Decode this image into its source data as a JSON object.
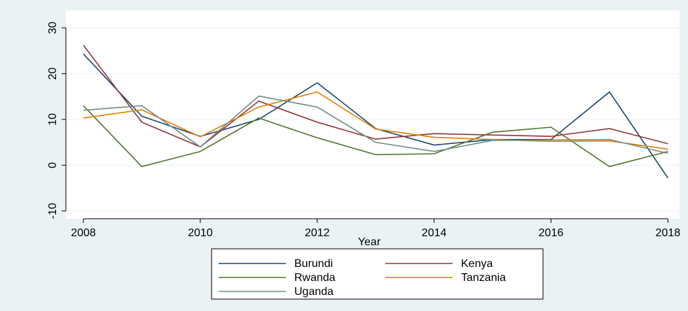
{
  "chart_data": {
    "type": "line",
    "x_label": "Year",
    "x": [
      2008,
      2009,
      2010,
      2011,
      2012,
      2013,
      2014,
      2015,
      2016,
      2017,
      2018
    ],
    "series": [
      {
        "name": "Burundi",
        "color": "#1a476f",
        "values": [
          24.3,
          10.7,
          6.3,
          10.0,
          18.0,
          8.0,
          4.4,
          5.6,
          5.6,
          16.0,
          -2.8
        ]
      },
      {
        "name": "Kenya",
        "color": "#90353b",
        "values": [
          26.2,
          9.4,
          4.0,
          14.0,
          9.4,
          5.7,
          6.9,
          6.6,
          6.3,
          8.0,
          4.7
        ]
      },
      {
        "name": "Rwanda",
        "color": "#55752f",
        "values": [
          13.0,
          -0.3,
          3.0,
          10.3,
          6.0,
          2.3,
          2.5,
          7.2,
          8.3,
          -0.3,
          3.0
        ]
      },
      {
        "name": "Tanzania",
        "color": "#e37e00",
        "values": [
          10.3,
          12.1,
          6.2,
          12.7,
          16.0,
          7.9,
          6.1,
          5.6,
          5.2,
          5.3,
          3.5
        ]
      },
      {
        "name": "Uganda",
        "color": "#6e8e84",
        "values": [
          12.0,
          13.0,
          4.0,
          15.1,
          12.7,
          5.0,
          3.0,
          5.4,
          5.5,
          5.6,
          2.6
        ]
      }
    ],
    "xlim": [
      2007.7,
      2018.2
    ],
    "xticks": [
      2008,
      2010,
      2012,
      2014,
      2016,
      2018
    ],
    "ylim": [
      -11.7,
      33.8
    ],
    "yticks": [
      -10,
      0,
      10,
      20,
      30
    ],
    "grid": true
  }
}
